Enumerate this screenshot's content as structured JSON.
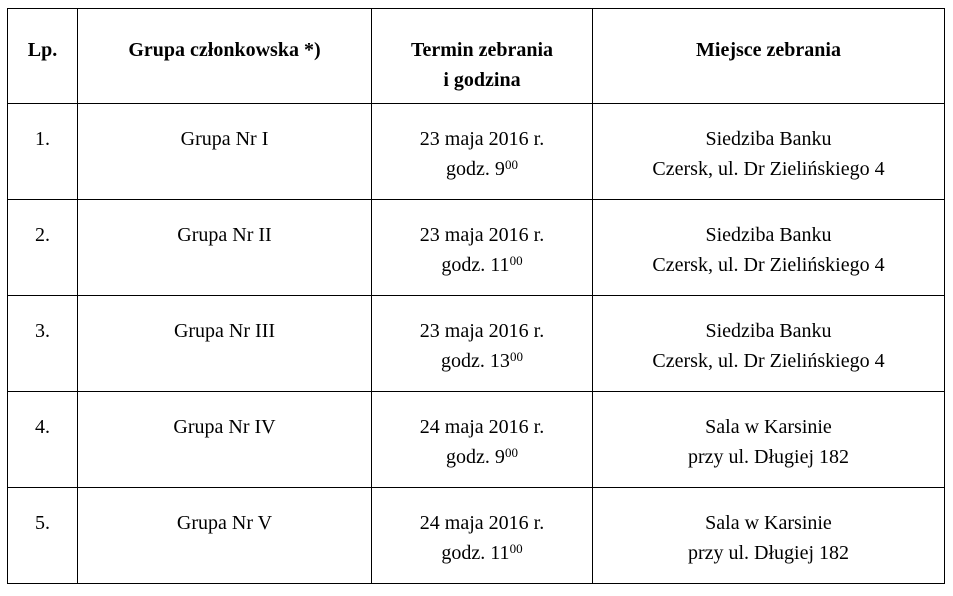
{
  "headers": {
    "lp": "Lp.",
    "group": "Grupa członkowska *)",
    "term_line1": "Termin zebrania",
    "term_line2": "i godzina",
    "place": "Miejsce zebrania"
  },
  "rows": [
    {
      "lp": "1.",
      "group": "Grupa Nr  I",
      "date": "23 maja 2016 r.",
      "time_prefix": "godz. 9",
      "time_sup": "00",
      "place1": "Siedziba Banku",
      "place2": "Czersk, ul. Dr Zielińskiego 4"
    },
    {
      "lp": "2.",
      "group": "Grupa Nr  II",
      "date": "23 maja 2016 r.",
      "time_prefix": "godz. 11",
      "time_sup": "00",
      "place1": "Siedziba Banku",
      "place2": "Czersk, ul. Dr Zielińskiego 4"
    },
    {
      "lp": "3.",
      "group": "Grupa Nr  III",
      "date": "23 maja 2016 r.",
      "time_prefix": "godz. 13",
      "time_sup": "00",
      "place1": "Siedziba Banku",
      "place2": "Czersk, ul. Dr Zielińskiego 4"
    },
    {
      "lp": "4.",
      "group": "Grupa Nr  IV",
      "date": "24 maja 2016 r.",
      "time_prefix": "godz. 9",
      "time_sup": "00",
      "place1": "Sala w Karsinie",
      "place2": "przy ul. Długiej 182"
    },
    {
      "lp": "5.",
      "group": "Grupa Nr  V",
      "date": "24 maja 2016 r.",
      "time_prefix": "godz. 11",
      "time_sup": "00",
      "place1": "Sala w Karsinie",
      "place2": "przy ul. Długiej 182"
    }
  ]
}
